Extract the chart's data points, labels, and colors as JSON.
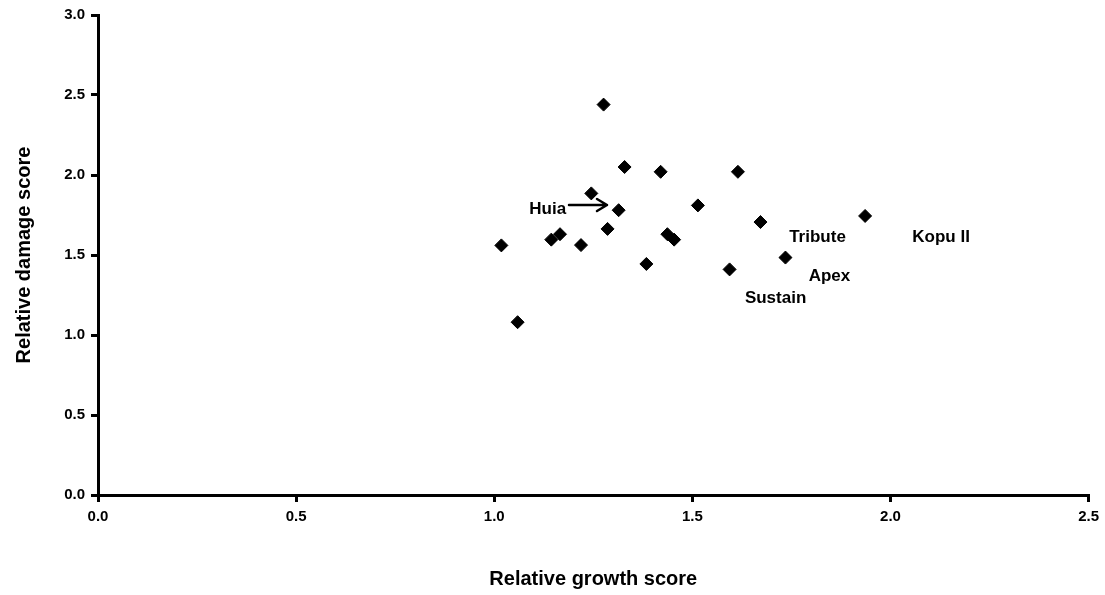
{
  "chart_data": {
    "type": "scatter",
    "xlabel": "Relative growth score",
    "ylabel": "Relative damage score",
    "x": [
      1.276,
      1.329,
      1.42,
      1.615,
      1.245,
      1.314,
      1.514,
      1.286,
      1.166,
      1.144,
      1.219,
      1.018,
      1.437,
      1.454,
      1.384,
      1.059,
      1.594,
      1.672,
      1.735,
      1.936
    ],
    "values": [
      2.44,
      2.05,
      2.02,
      2.02,
      1.885,
      1.78,
      1.81,
      1.663,
      1.63,
      1.596,
      1.562,
      1.56,
      1.63,
      1.596,
      1.444,
      1.08,
      1.41,
      1.706,
      1.484,
      1.744
    ],
    "color": "#000000",
    "marker": "diamond",
    "grid": false,
    "legend": false,
    "xlim": [
      0,
      2.5
    ],
    "xticks": [
      {
        "value": 0,
        "label": "0.0"
      },
      0.5,
      {
        "value": 1,
        "label": "1.0"
      },
      1.5,
      {
        "value": 2,
        "label": "2.0"
      },
      2.5
    ],
    "ylim": [
      0,
      3
    ],
    "yticks": [
      {
        "value": 0,
        "label": "0.0"
      },
      0.5,
      {
        "value": 1,
        "label": "1.0"
      },
      1.5,
      {
        "value": 2,
        "label": "2.0"
      },
      2.5,
      {
        "value": 3,
        "label": "3.0"
      }
    ],
    "annotations": [
      "Huia",
      {
        "text": "Tribute",
        "x": 1.672,
        "y": 1.706
      },
      {
        "text": "Kopu II",
        "x": 1.936,
        "y": 1.744
      },
      {
        "text": "Apex",
        "x": 1.735,
        "y": 1.484
      },
      {
        "text": "Sustain",
        "x": 1.594,
        "y": 1.41
      }
    ]
  }
}
